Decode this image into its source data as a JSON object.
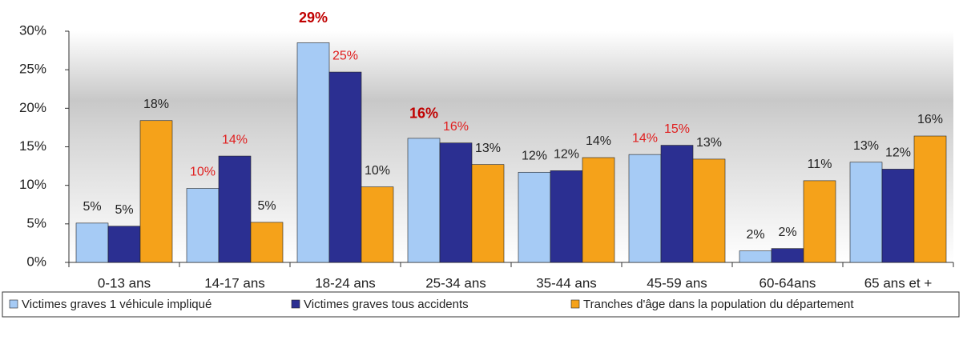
{
  "chart_data": {
    "type": "bar",
    "categories": [
      "0-13 ans",
      "14-17 ans",
      "18-24 ans",
      "25-34 ans",
      "35-44 ans",
      "45-59 ans",
      "60-64ans",
      "65 ans et +"
    ],
    "series": [
      {
        "name": "Victimes graves 1 véhicule impliqué",
        "color": "#a6cbf5",
        "values": [
          5.1,
          9.6,
          28.5,
          16.1,
          11.7,
          14.0,
          1.5,
          13.0
        ],
        "value_labels": [
          "5%",
          "10%",
          "29%",
          "16%",
          "12%",
          "14%",
          "2%",
          "13%"
        ],
        "value_label_colors": [
          "#222",
          "#e02020",
          "#c00000",
          "#c00000",
          "#222",
          "#e02020",
          "#222",
          "#222"
        ],
        "value_label_bold": [
          false,
          false,
          true,
          true,
          false,
          false,
          false,
          false
        ]
      },
      {
        "name": "Victimes graves tous accidents",
        "color": "#2b2f91",
        "values": [
          4.7,
          13.8,
          24.7,
          15.5,
          11.9,
          15.2,
          1.8,
          12.1
        ],
        "value_labels": [
          "5%",
          "14%",
          "25%",
          "16%",
          "12%",
          "15%",
          "2%",
          "12%"
        ],
        "value_label_colors": [
          "#222",
          "#e02020",
          "#e02020",
          "#e02020",
          "#222",
          "#e02020",
          "#222",
          "#222"
        ],
        "value_label_bold": [
          false,
          false,
          false,
          false,
          false,
          false,
          false,
          false
        ]
      },
      {
        "name": "Tranches d'âge dans la population du département",
        "color": "#f5a21a",
        "values": [
          18.4,
          5.2,
          9.8,
          12.7,
          13.6,
          13.4,
          10.6,
          16.4
        ],
        "value_labels": [
          "18%",
          "5%",
          "10%",
          "13%",
          "14%",
          "13%",
          "11%",
          "16%"
        ],
        "value_label_colors": [
          "#222",
          "#222",
          "#222",
          "#222",
          "#222",
          "#222",
          "#222",
          "#222"
        ],
        "value_label_bold": [
          false,
          false,
          false,
          false,
          false,
          false,
          false,
          false
        ]
      }
    ],
    "ylim": [
      0,
      30
    ],
    "yticks": [
      {
        "value": 0,
        "label": "0%"
      },
      {
        "value": 5,
        "label": "5%"
      },
      {
        "value": 10,
        "label": "10%"
      },
      {
        "value": 15,
        "label": "15%"
      },
      {
        "value": 20,
        "label": "20%"
      },
      {
        "value": 25,
        "label": "25%"
      },
      {
        "value": 30,
        "label": "30%"
      }
    ],
    "legend": "bottom"
  }
}
